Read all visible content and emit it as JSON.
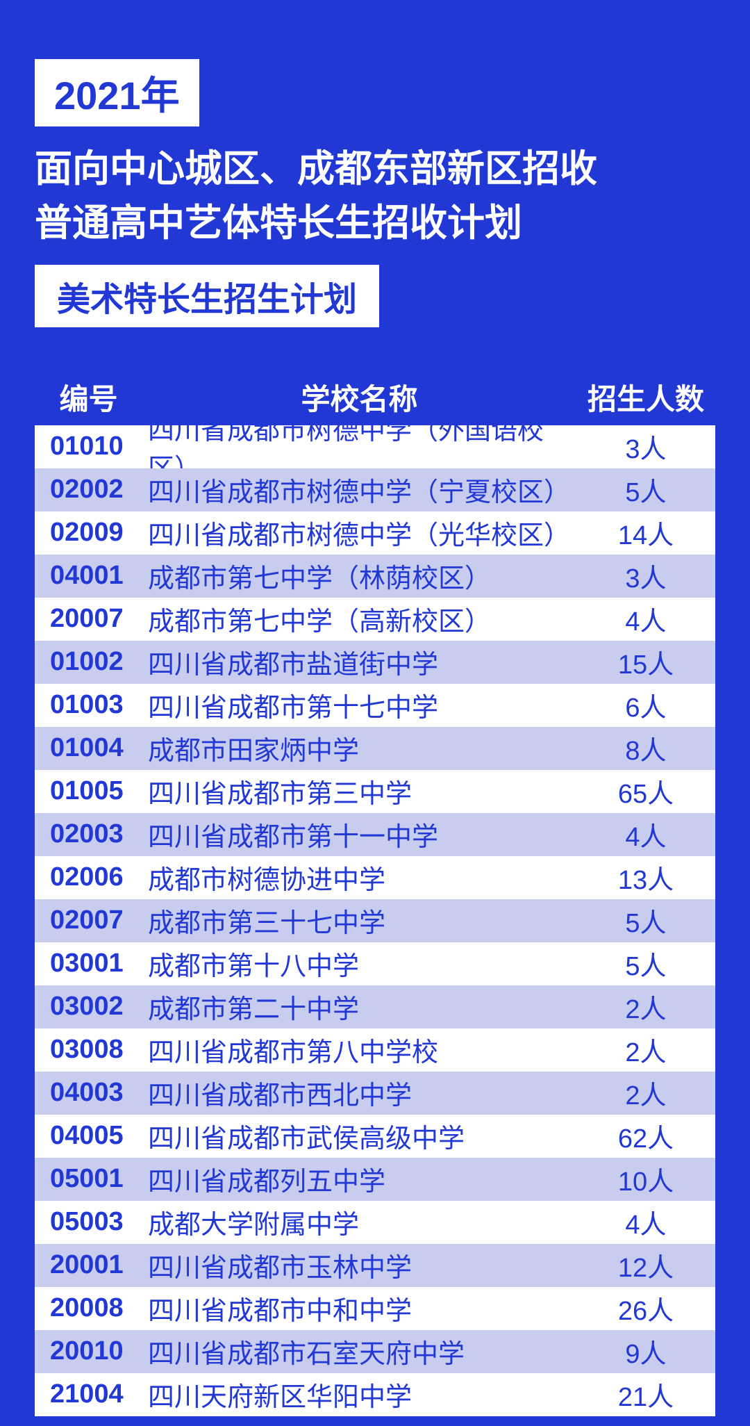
{
  "header": {
    "year_badge": "2021年",
    "title_line1": "面向中心城区、成都东部新区招收",
    "title_line2": "普通高中艺体特长生招收计划",
    "sub_badge": "美术特长生招生计划"
  },
  "table": {
    "columns": {
      "id": "编号",
      "name": "学校名称",
      "count": "招生人数"
    },
    "colors": {
      "page_bg": "#2138d4",
      "row_odd_bg": "#ffffff",
      "row_even_bg": "#c8cdf0",
      "text_color": "#2138d4",
      "header_text": "#ffffff"
    },
    "font": {
      "header_size": 42,
      "row_size": 38,
      "title_size": 54
    },
    "rows": [
      {
        "id": "01010",
        "name": "四川省成都市树德中学（外国语校区）",
        "count": "3人"
      },
      {
        "id": "02002",
        "name": "四川省成都市树德中学（宁夏校区）",
        "count": "5人"
      },
      {
        "id": "02009",
        "name": "四川省成都市树德中学（光华校区）",
        "count": "14人"
      },
      {
        "id": "04001",
        "name": "成都市第七中学（林荫校区）",
        "count": "3人"
      },
      {
        "id": "20007",
        "name": "成都市第七中学（高新校区）",
        "count": "4人"
      },
      {
        "id": "01002",
        "name": "四川省成都市盐道街中学",
        "count": "15人"
      },
      {
        "id": "01003",
        "name": "四川省成都市第十七中学",
        "count": "6人"
      },
      {
        "id": "01004",
        "name": "成都市田家炳中学",
        "count": "8人"
      },
      {
        "id": "01005",
        "name": "四川省成都市第三中学",
        "count": "65人"
      },
      {
        "id": "02003",
        "name": "四川省成都市第十一中学",
        "count": "4人"
      },
      {
        "id": "02006",
        "name": "成都市树德协进中学",
        "count": "13人"
      },
      {
        "id": "02007",
        "name": "成都市第三十七中学",
        "count": "5人"
      },
      {
        "id": "03001",
        "name": "成都市第十八中学",
        "count": "5人"
      },
      {
        "id": "03002",
        "name": "成都市第二十中学",
        "count": "2人"
      },
      {
        "id": "03008",
        "name": "四川省成都市第八中学校",
        "count": "2人"
      },
      {
        "id": "04003",
        "name": "四川省成都市西北中学",
        "count": "2人"
      },
      {
        "id": "04005",
        "name": "四川省成都市武侯高级中学",
        "count": "62人"
      },
      {
        "id": "05001",
        "name": "四川省成都列五中学",
        "count": "10人"
      },
      {
        "id": "05003",
        "name": "成都大学附属中学",
        "count": "4人"
      },
      {
        "id": "20001",
        "name": "四川省成都市玉林中学",
        "count": "12人"
      },
      {
        "id": "20008",
        "name": "四川省成都市中和中学",
        "count": "26人"
      },
      {
        "id": "20010",
        "name": "四川省成都市石室天府中学",
        "count": "9人"
      },
      {
        "id": "21004",
        "name": "四川天府新区华阳中学",
        "count": "21人"
      }
    ]
  }
}
